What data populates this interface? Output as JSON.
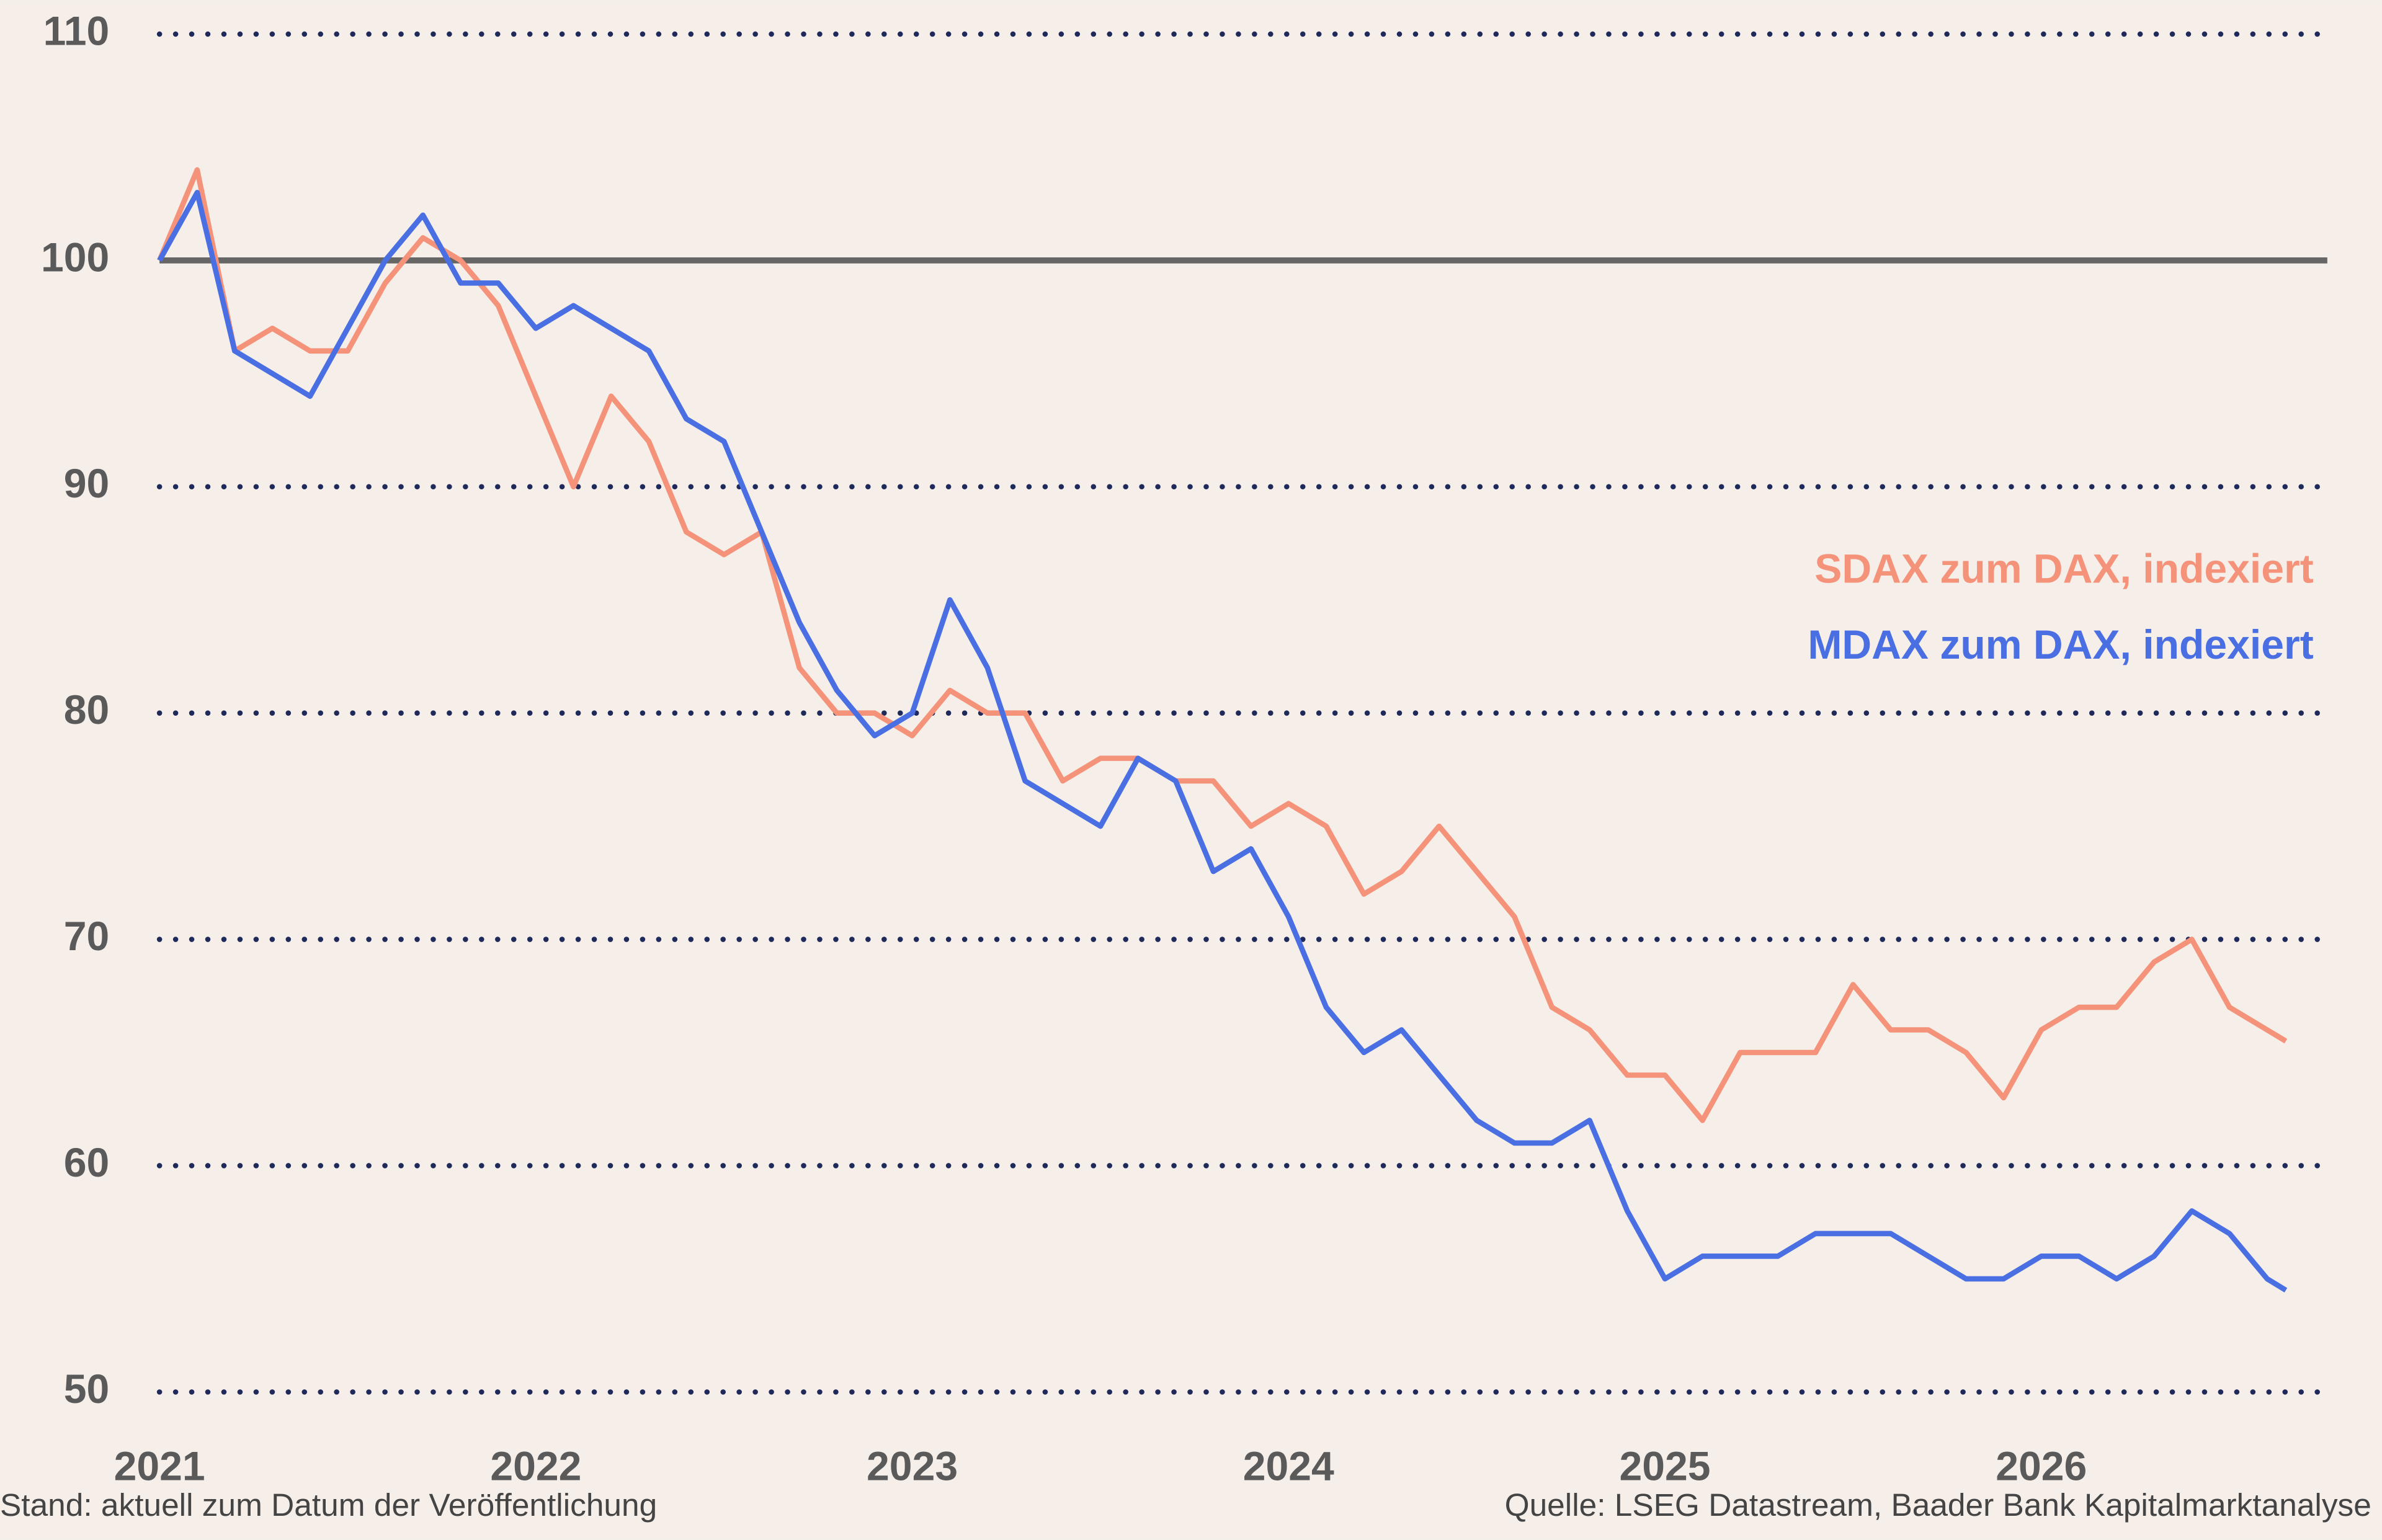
{
  "chart_data": {
    "type": "line",
    "x": [
      2021.0,
      2021.1,
      2021.2,
      2021.3,
      2021.4,
      2021.5,
      2021.6,
      2021.7,
      2021.8,
      2021.9,
      2022.0,
      2022.1,
      2022.2,
      2022.3,
      2022.4,
      2022.5,
      2022.6,
      2022.7,
      2022.8,
      2022.9,
      2023.0,
      2023.1,
      2023.2,
      2023.3,
      2023.4,
      2023.5,
      2023.6,
      2023.7,
      2023.8,
      2023.9,
      2024.0,
      2024.1,
      2024.2,
      2024.3,
      2024.4,
      2024.5,
      2024.6,
      2024.7,
      2024.8,
      2024.9,
      2025.0,
      2025.1,
      2025.2,
      2025.3,
      2025.4,
      2025.5,
      2025.6,
      2025.7,
      2025.8,
      2025.9,
      2026.0,
      2026.1,
      2026.2,
      2026.3,
      2026.4,
      2026.5,
      2026.6,
      2026.65
    ],
    "series": [
      {
        "name": "SDAX zum DAX, indexiert",
        "color": "#f4937a",
        "values": [
          100,
          104,
          96,
          97,
          96,
          96,
          99,
          101,
          100,
          98,
          94,
          90,
          94,
          92,
          88,
          87,
          88,
          82,
          80,
          80,
          79,
          81,
          80,
          80,
          77,
          78,
          78,
          77,
          77,
          75,
          76,
          75,
          72,
          73,
          75,
          73,
          71,
          67,
          66,
          64,
          64,
          62,
          65,
          65,
          65,
          68,
          66,
          66,
          65,
          63,
          66,
          67,
          67,
          69,
          70,
          67,
          66,
          65.5
        ]
      },
      {
        "name": "MDAX zum DAX, indexiert",
        "color": "#4a6fe3",
        "values": [
          100,
          103,
          96,
          95,
          94,
          97,
          100,
          102,
          99,
          99,
          97,
          98,
          97,
          96,
          93,
          92,
          88,
          84,
          81,
          79,
          80,
          85,
          82,
          77,
          76,
          75,
          78,
          77,
          73,
          74,
          71,
          67,
          65,
          66,
          64,
          62,
          61,
          61,
          62,
          58,
          55,
          56,
          56,
          56,
          57,
          57,
          57,
          56,
          55,
          55,
          56,
          56,
          55,
          56,
          58,
          57,
          55,
          54.5
        ]
      }
    ],
    "xlim": [
      2021,
      2026.76
    ],
    "xticks": [
      2021,
      2022,
      2023,
      2024,
      2025,
      2026
    ],
    "ylim": [
      50,
      110
    ],
    "yticks": [
      50,
      60,
      70,
      80,
      90,
      100,
      110
    ],
    "grid": true,
    "reference_line": 100,
    "legend": "right",
    "note": "Stand: aktuell zum Datum der Veröffentlichung",
    "source": "Quelle: LSEG Datastream, Baader Bank Kapitalmarktanalyse"
  }
}
